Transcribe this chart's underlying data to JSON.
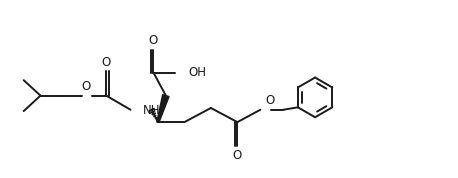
{
  "bg_color": "#ffffff",
  "line_color": "#1a1a1a",
  "lw": 1.4,
  "fs": 8.5,
  "fig_w": 4.58,
  "fig_h": 1.78,
  "dpi": 100,
  "xlim": [
    0,
    9.5
  ],
  "ylim": [
    0,
    4.0
  ]
}
